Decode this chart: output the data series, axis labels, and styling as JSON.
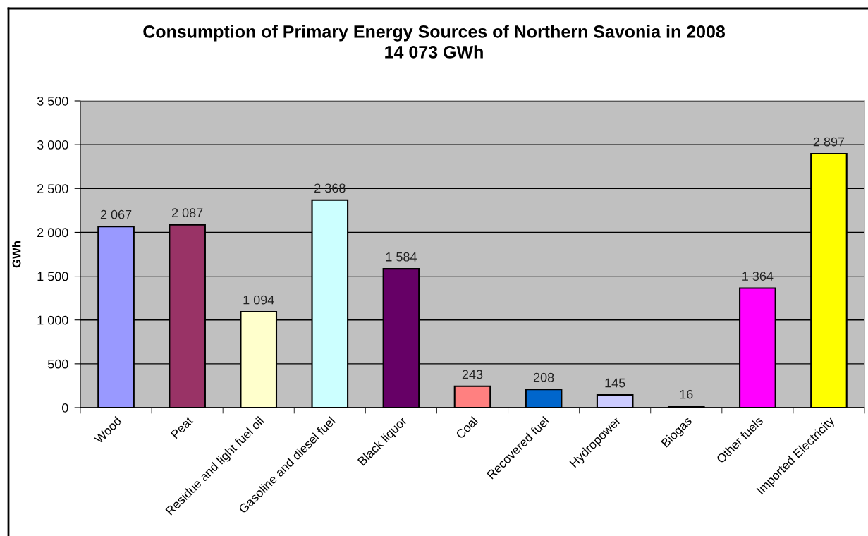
{
  "chart_data": {
    "type": "bar",
    "title": "Consumption of Primary Energy Sources of Northern Savonia in 2008",
    "subtitle": "14 073 GWh",
    "ylabel": "GWh",
    "categories": [
      "Wood",
      "Peat",
      "Residue and light fuel oil",
      "Gasoline and diesel fuel",
      "Black liquor",
      "Coal",
      "Recovered fuel",
      "Hydropower",
      "Biogas",
      "Other fuels",
      "Imported Electricity"
    ],
    "values": [
      2067,
      2087,
      1094,
      2368,
      1584,
      243,
      208,
      145,
      16,
      1364,
      2897
    ],
    "colors": [
      "#9999ff",
      "#993366",
      "#ffffcc",
      "#ccffff",
      "#660066",
      "#ff8080",
      "#0066cc",
      "#ccccff",
      "#000080",
      "#ff00ff",
      "#ffff00"
    ],
    "value_labels": [
      "2 067",
      "2 087",
      "1 094",
      "2 368",
      "1 584",
      "243",
      "208",
      "145",
      "16",
      "1 364",
      "2 897"
    ],
    "ylim": [
      0,
      3500
    ],
    "yticks": [
      {
        "value": 0,
        "label": "0"
      },
      {
        "value": 500,
        "label": "500"
      },
      {
        "value": 1000,
        "label": "1 000"
      },
      {
        "value": 1500,
        "label": "1 500"
      },
      {
        "value": 2000,
        "label": "2 000"
      },
      {
        "value": 2500,
        "label": "2 500"
      },
      {
        "value": 3000,
        "label": "3 000"
      },
      {
        "value": 3500,
        "label": "3 500"
      }
    ],
    "grid": "y"
  }
}
